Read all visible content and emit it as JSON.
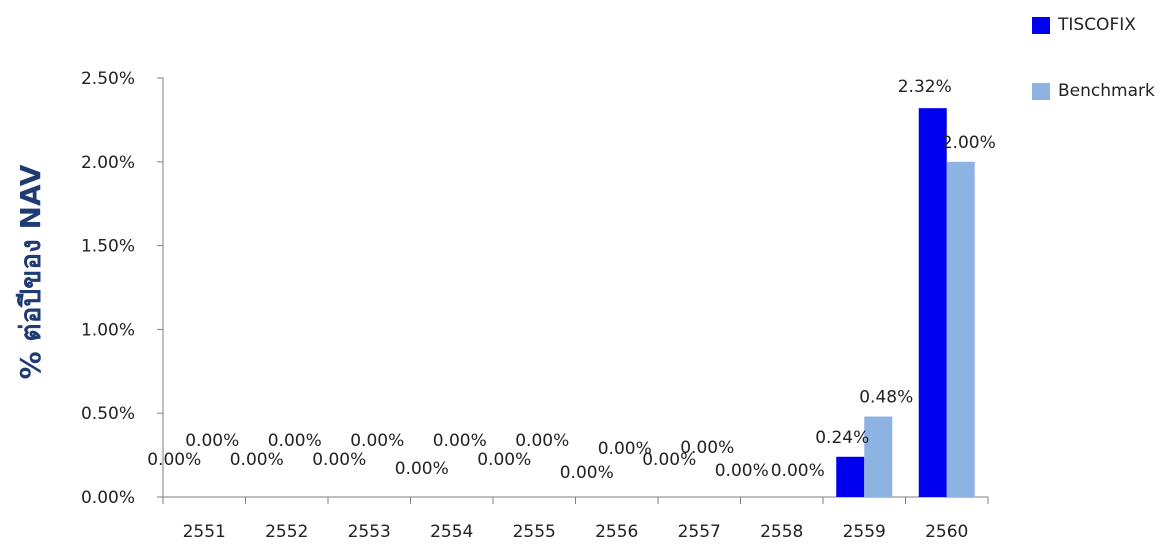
{
  "chart_data": {
    "type": "bar",
    "title": "",
    "xlabel": "",
    "ylabel": "% ต่อปีของ NAV",
    "categories": [
      "2551",
      "2552",
      "2553",
      "2554",
      "2555",
      "2556",
      "2557",
      "2558",
      "2559",
      "2560"
    ],
    "series": [
      {
        "name": "TISCOFIX",
        "color": "#0000ee",
        "values": [
          0,
          0,
          0,
          0,
          0,
          0,
          0,
          0,
          0.24,
          2.32
        ],
        "labels": [
          "0.00%",
          "0.00%",
          "0.00%",
          "0.00%",
          "0.00%",
          "0.00%",
          "0.00%",
          "0.00%",
          "0.24%",
          "2.32%"
        ]
      },
      {
        "name": "Benchmark",
        "color": "#8db3e2",
        "values": [
          0,
          0,
          0,
          0,
          0,
          0,
          0,
          0,
          0.48,
          2.0
        ],
        "labels": [
          "0.00%",
          "0.00%",
          "0.00%",
          "0.00%",
          "0.00%",
          "0.00%",
          "0.00%",
          "0.00%",
          "0.48%",
          "2.00%"
        ]
      }
    ],
    "ylim": [
      0,
      2.5
    ],
    "yticks": [
      0,
      0.5,
      1.0,
      1.5,
      2.0,
      2.5
    ],
    "ytick_labels": [
      "0.00%",
      "0.50%",
      "1.00%",
      "1.50%",
      "2.00%",
      "2.50%"
    ],
    "grid": false,
    "legend_position": "top-right"
  }
}
